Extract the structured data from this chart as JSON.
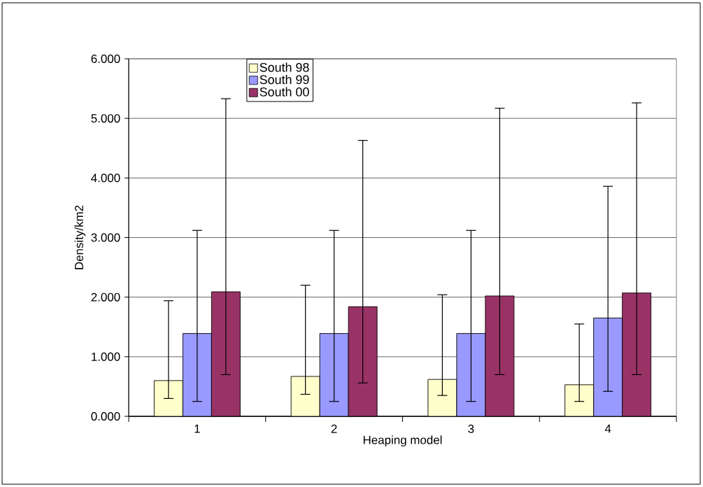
{
  "chart_data": {
    "type": "bar",
    "xlabel": "Heaping model",
    "ylabel": "Density/km2",
    "categories": [
      "1",
      "2",
      "3",
      "4"
    ],
    "series": [
      {
        "name": "South 98",
        "color": "#ffffcc",
        "values": [
          0.6,
          0.67,
          0.62,
          0.53
        ],
        "errors": [
          [
            0.3,
            1.94
          ],
          [
            0.37,
            2.2
          ],
          [
            0.35,
            2.04
          ],
          [
            0.25,
            1.55
          ]
        ]
      },
      {
        "name": "South 99",
        "color": "#9999ff",
        "values": [
          1.39,
          1.39,
          1.39,
          1.65
        ],
        "errors": [
          [
            0.25,
            3.12
          ],
          [
            0.25,
            3.12
          ],
          [
            0.25,
            3.12
          ],
          [
            0.42,
            3.86
          ]
        ]
      },
      {
        "name": "South 00",
        "color": "#993366",
        "values": [
          2.09,
          1.84,
          2.02,
          2.07
        ],
        "errors": [
          [
            0.7,
            5.33
          ],
          [
            0.56,
            4.63
          ],
          [
            0.7,
            5.17
          ],
          [
            0.7,
            5.26
          ]
        ]
      }
    ],
    "ylim": [
      0,
      6
    ],
    "yticks": [
      {
        "value": 0,
        "label": "0.000"
      },
      {
        "value": 1,
        "label": "1.000"
      },
      {
        "value": 2,
        "label": "2.000"
      },
      {
        "value": 3,
        "label": "3.000"
      },
      {
        "value": 4,
        "label": "4.000"
      },
      {
        "value": 5,
        "label": "5.000"
      },
      {
        "value": 6,
        "label": "6.000"
      }
    ],
    "grid": "y",
    "legend": "top left"
  }
}
